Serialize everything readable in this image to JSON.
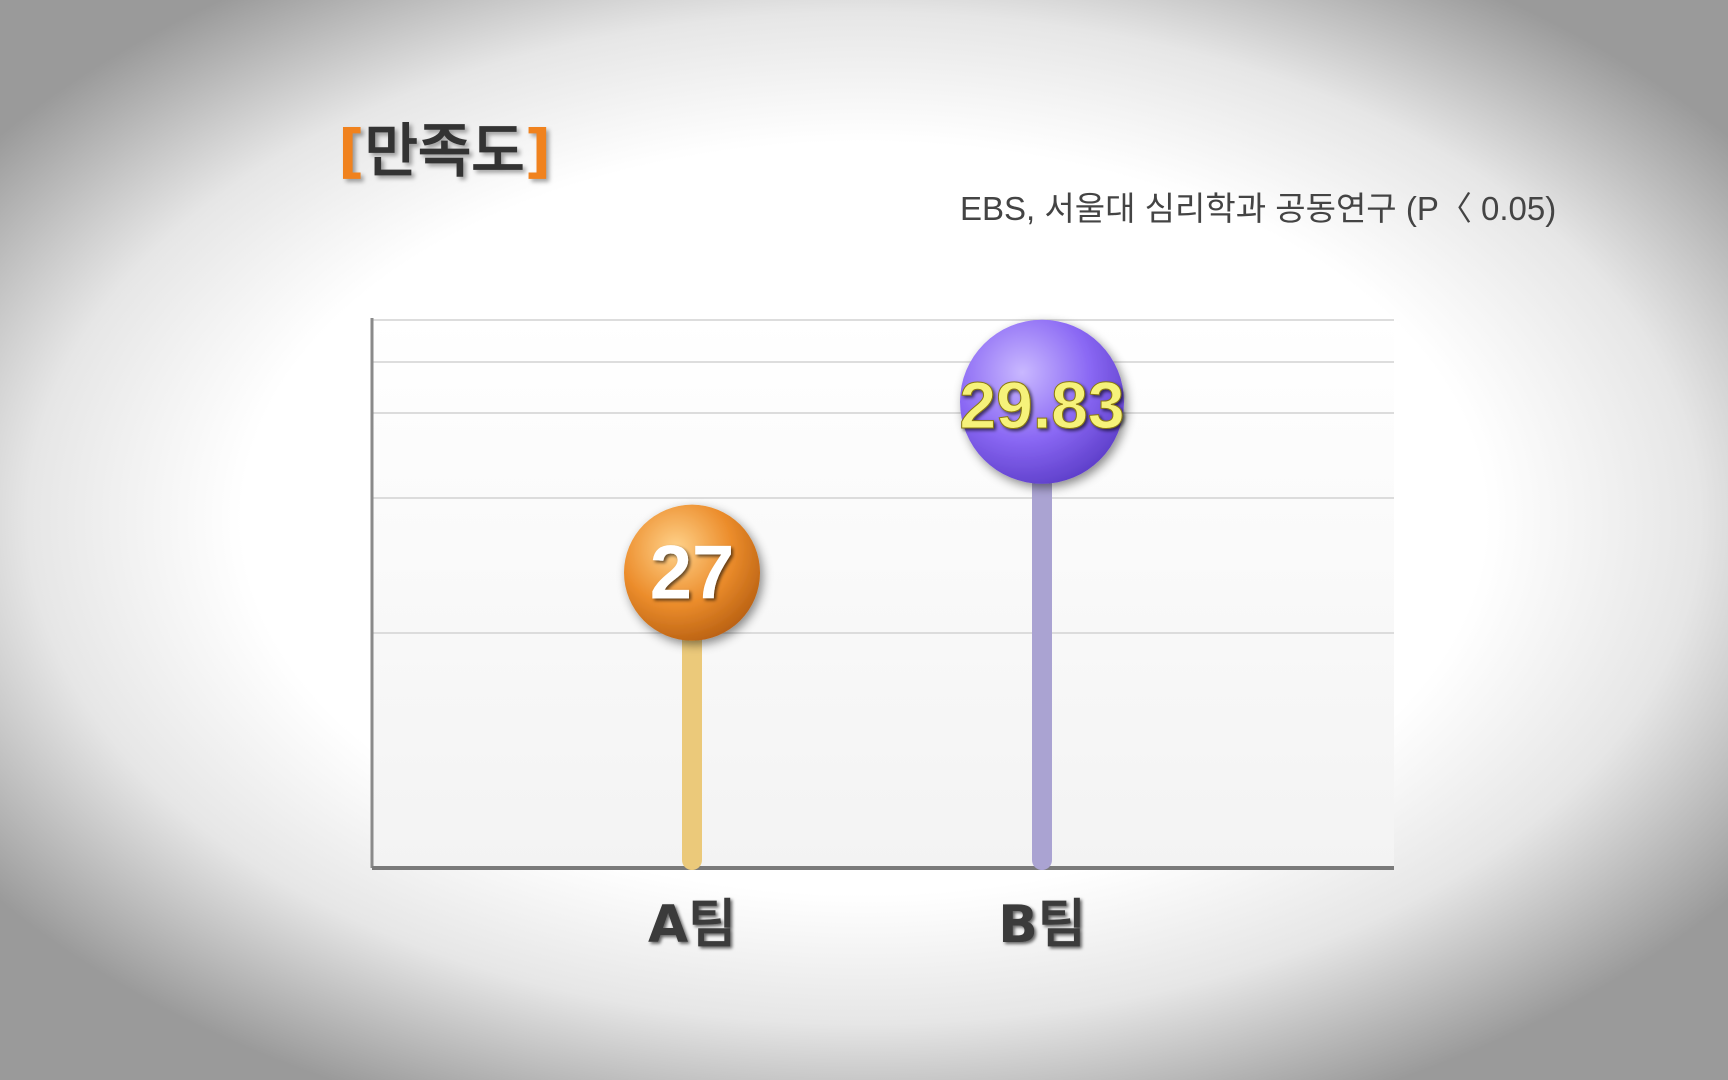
{
  "header": {
    "bracket_open": "[",
    "title": "만족도",
    "bracket_close": "]",
    "source": "EBS, 서울대 심리학과 공동연구 (P〈 0.05)"
  },
  "chart_data": {
    "type": "bar",
    "categories": [
      "A팀",
      "B팀"
    ],
    "values": [
      27,
      29.83
    ],
    "value_labels": [
      "27",
      "29.83"
    ],
    "colors": [
      "#e9892a",
      "#8f6ff5"
    ],
    "stem_colors": [
      "#ebc97a",
      "#aaa3d2"
    ],
    "grid": true,
    "ylim": [
      22,
      31
    ]
  }
}
